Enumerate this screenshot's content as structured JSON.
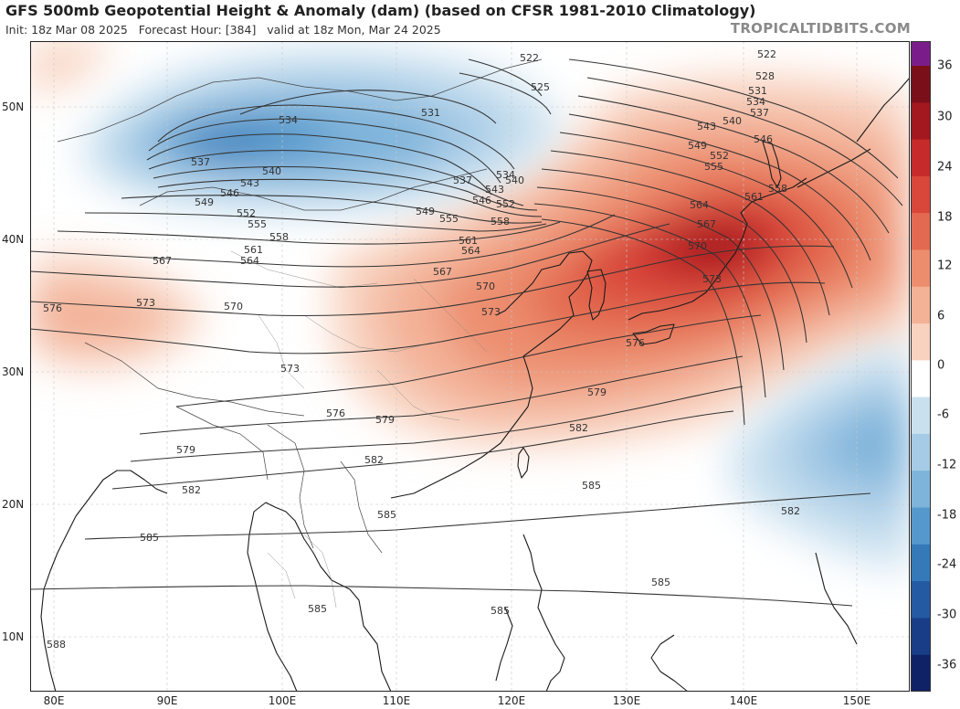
{
  "header": {
    "title": "GFS 500mb Geopotential Height & Anomaly (dam) (based on CFSR 1981-2010 Climatology)",
    "init": "Init: 18z Mar 08 2025",
    "forecast_hour": "Forecast Hour: [384]",
    "valid": "valid at 18z Mon, Mar 24 2025",
    "brand": "TROPICALTIDBITS.COM"
  },
  "axes": {
    "lon_labels": [
      "80E",
      "90E",
      "100E",
      "110E",
      "120E",
      "130E",
      "140E",
      "150E"
    ],
    "lat_labels": [
      "50N",
      "40N",
      "30N",
      "20N",
      "10N"
    ]
  },
  "colorbar": {
    "labels": [
      "36",
      "30",
      "24",
      "18",
      "12",
      "6",
      "0",
      "-6",
      "-12",
      "-18",
      "-24",
      "-30",
      "-36"
    ],
    "colors": [
      "#7a1d8a",
      "#7a0f1a",
      "#a3171f",
      "#c62a2a",
      "#d9473a",
      "#e36a50",
      "#ec8d6e",
      "#f3b196",
      "#f8d2bf",
      "#ffffff",
      "#c9e0ef",
      "#a6cbe6",
      "#7eb3da",
      "#5598cc",
      "#3579b8",
      "#245aa2",
      "#193e87",
      "#0f2266"
    ]
  },
  "contour_labels": [
    {
      "label": "522"
    },
    {
      "label": "522"
    },
    {
      "label": "525"
    },
    {
      "label": "528"
    },
    {
      "label": "531"
    },
    {
      "label": "531"
    },
    {
      "label": "534"
    },
    {
      "label": "534"
    },
    {
      "label": "534"
    },
    {
      "label": "537"
    },
    {
      "label": "537"
    },
    {
      "label": "537"
    },
    {
      "label": "540"
    },
    {
      "label": "540"
    },
    {
      "label": "540"
    },
    {
      "label": "543"
    },
    {
      "label": "543"
    },
    {
      "label": "543"
    },
    {
      "label": "546"
    },
    {
      "label": "546"
    },
    {
      "label": "546"
    },
    {
      "label": "549"
    },
    {
      "label": "549"
    },
    {
      "label": "549"
    },
    {
      "label": "552"
    },
    {
      "label": "552"
    },
    {
      "label": "552"
    },
    {
      "label": "555"
    },
    {
      "label": "555"
    },
    {
      "label": "555"
    },
    {
      "label": "558"
    },
    {
      "label": "558"
    },
    {
      "label": "558"
    },
    {
      "label": "561"
    },
    {
      "label": "561"
    },
    {
      "label": "561"
    },
    {
      "label": "564"
    },
    {
      "label": "564"
    },
    {
      "label": "564"
    },
    {
      "label": "567"
    },
    {
      "label": "567"
    },
    {
      "label": "567"
    },
    {
      "label": "570"
    },
    {
      "label": "570"
    },
    {
      "label": "570"
    },
    {
      "label": "573"
    },
    {
      "label": "573"
    },
    {
      "label": "573"
    },
    {
      "label": "573"
    },
    {
      "label": "576"
    },
    {
      "label": "576"
    },
    {
      "label": "576"
    },
    {
      "label": "579"
    },
    {
      "label": "579"
    },
    {
      "label": "579"
    },
    {
      "label": "582"
    },
    {
      "label": "582"
    },
    {
      "label": "582"
    },
    {
      "label": "582"
    },
    {
      "label": "585"
    },
    {
      "label": "585"
    },
    {
      "label": "585"
    },
    {
      "label": "585"
    },
    {
      "label": "585"
    },
    {
      "label": "588"
    }
  ]
}
